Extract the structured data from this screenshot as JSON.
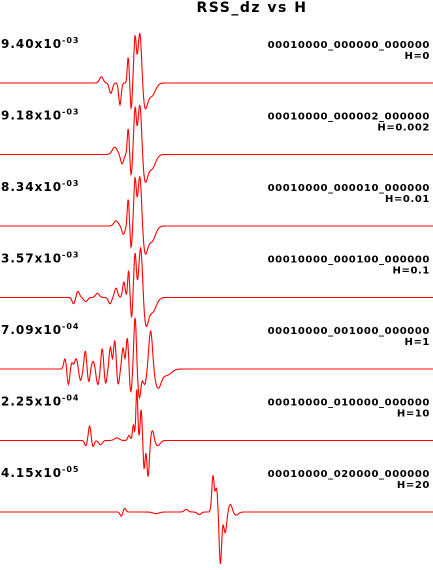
{
  "chart_data": {
    "type": "line",
    "title": "RSS_dz vs H",
    "xlabel": "",
    "ylabel": "",
    "grid": false,
    "legend": "none",
    "line_color": "#ff0000",
    "traces": [
      {
        "scale": {
          "mantissa": "9.40x10",
          "exponent": "-03"
        },
        "label": "00010000_000000_000000",
        "param": "H=0",
        "pulses": [
          {
            "t": 0.234,
            "a": 0.12,
            "w": 0.006
          },
          {
            "t": 0.256,
            "a": -0.2,
            "w": 0.005
          },
          {
            "t": 0.277,
            "a": -0.42,
            "w": 0.004
          },
          {
            "t": 0.296,
            "a": 0.5,
            "w": 0.003
          },
          {
            "t": 0.303,
            "a": -0.5,
            "w": 0.003
          },
          {
            "t": 0.312,
            "a": 0.88,
            "w": 0.004
          },
          {
            "t": 0.323,
            "a": 1.0,
            "w": 0.006
          },
          {
            "t": 0.335,
            "a": -0.45,
            "w": 0.008
          },
          {
            "t": 0.35,
            "a": -0.25,
            "w": 0.012
          }
        ]
      },
      {
        "scale": {
          "mantissa": "9.18x10",
          "exponent": "-03"
        },
        "label": "00010000_000002_000000",
        "param": "H=0.002",
        "pulses": [
          {
            "t": 0.265,
            "a": 0.14,
            "w": 0.008
          },
          {
            "t": 0.282,
            "a": -0.18,
            "w": 0.005
          },
          {
            "t": 0.296,
            "a": 0.5,
            "w": 0.003
          },
          {
            "t": 0.303,
            "a": -0.4,
            "w": 0.003
          },
          {
            "t": 0.312,
            "a": 0.88,
            "w": 0.004
          },
          {
            "t": 0.323,
            "a": 1.0,
            "w": 0.006
          },
          {
            "t": 0.335,
            "a": -0.48,
            "w": 0.008
          },
          {
            "t": 0.35,
            "a": -0.28,
            "w": 0.012
          }
        ]
      },
      {
        "scale": {
          "mantissa": "8.34x10",
          "exponent": "-03"
        },
        "label": "00010000_000010_000000",
        "param": "H=0.01",
        "pulses": [
          {
            "t": 0.268,
            "a": 0.1,
            "w": 0.007
          },
          {
            "t": 0.285,
            "a": -0.16,
            "w": 0.005
          },
          {
            "t": 0.296,
            "a": 0.52,
            "w": 0.003
          },
          {
            "t": 0.303,
            "a": -0.42,
            "w": 0.003
          },
          {
            "t": 0.312,
            "a": 0.9,
            "w": 0.004
          },
          {
            "t": 0.323,
            "a": 1.0,
            "w": 0.006
          },
          {
            "t": 0.335,
            "a": -0.48,
            "w": 0.008
          },
          {
            "t": 0.35,
            "a": -0.3,
            "w": 0.012
          }
        ]
      },
      {
        "scale": {
          "mantissa": "3.57x10",
          "exponent": "-03"
        },
        "label": "00010000_000100_000000",
        "param": "H=0.1",
        "pulses": [
          {
            "t": 0.17,
            "a": -0.12,
            "w": 0.005
          },
          {
            "t": 0.18,
            "a": 0.12,
            "w": 0.005
          },
          {
            "t": 0.198,
            "a": -0.08,
            "w": 0.006
          },
          {
            "t": 0.225,
            "a": 0.08,
            "w": 0.006
          },
          {
            "t": 0.254,
            "a": -0.12,
            "w": 0.005
          },
          {
            "t": 0.268,
            "a": 0.18,
            "w": 0.005
          },
          {
            "t": 0.286,
            "a": 0.3,
            "w": 0.004
          },
          {
            "t": 0.297,
            "a": 0.52,
            "w": 0.003
          },
          {
            "t": 0.304,
            "a": -0.4,
            "w": 0.003
          },
          {
            "t": 0.312,
            "a": 0.85,
            "w": 0.004
          },
          {
            "t": 0.325,
            "a": 1.0,
            "w": 0.006
          },
          {
            "t": 0.337,
            "a": -0.5,
            "w": 0.008
          },
          {
            "t": 0.352,
            "a": -0.28,
            "w": 0.012
          }
        ]
      },
      {
        "scale": {
          "mantissa": "7.09x10",
          "exponent": "-04"
        },
        "label": "00010000_001000_000000",
        "param": "H=1",
        "pulses": [
          {
            "t": 0.15,
            "a": 0.2,
            "w": 0.004
          },
          {
            "t": 0.158,
            "a": -0.3,
            "w": 0.004
          },
          {
            "t": 0.166,
            "a": 0.12,
            "w": 0.004
          },
          {
            "t": 0.176,
            "a": 0.2,
            "w": 0.005
          },
          {
            "t": 0.186,
            "a": -0.22,
            "w": 0.005
          },
          {
            "t": 0.197,
            "a": 0.35,
            "w": 0.004
          },
          {
            "t": 0.205,
            "a": -0.25,
            "w": 0.004
          },
          {
            "t": 0.215,
            "a": 0.15,
            "w": 0.005
          },
          {
            "t": 0.226,
            "a": -0.3,
            "w": 0.005
          },
          {
            "t": 0.236,
            "a": 0.4,
            "w": 0.004
          },
          {
            "t": 0.244,
            "a": -0.28,
            "w": 0.004
          },
          {
            "t": 0.255,
            "a": 0.42,
            "w": 0.004
          },
          {
            "t": 0.265,
            "a": 0.55,
            "w": 0.004
          },
          {
            "t": 0.273,
            "a": -0.3,
            "w": 0.004
          },
          {
            "t": 0.284,
            "a": 0.4,
            "w": 0.004
          },
          {
            "t": 0.294,
            "a": 0.6,
            "w": 0.004
          },
          {
            "t": 0.302,
            "a": -0.45,
            "w": 0.004
          },
          {
            "t": 0.312,
            "a": 1.0,
            "w": 0.004
          },
          {
            "t": 0.322,
            "a": -0.55,
            "w": 0.005
          },
          {
            "t": 0.334,
            "a": -0.3,
            "w": 0.006
          },
          {
            "t": 0.348,
            "a": 0.75,
            "w": 0.006
          },
          {
            "t": 0.365,
            "a": -0.35,
            "w": 0.01
          },
          {
            "t": 0.385,
            "a": -0.12,
            "w": 0.015
          }
        ]
      },
      {
        "scale": {
          "mantissa": "2.25x10",
          "exponent": "-04"
        },
        "label": "00010000_010000_000000",
        "param": "H=10",
        "pulses": [
          {
            "t": 0.198,
            "a": -0.1,
            "w": 0.004
          },
          {
            "t": 0.207,
            "a": 0.28,
            "w": 0.004
          },
          {
            "t": 0.215,
            "a": -0.12,
            "w": 0.004
          },
          {
            "t": 0.232,
            "a": -0.08,
            "w": 0.006
          },
          {
            "t": 0.27,
            "a": 0.05,
            "w": 0.008
          },
          {
            "t": 0.298,
            "a": 0.1,
            "w": 0.004
          },
          {
            "t": 0.308,
            "a": 0.3,
            "w": 0.003
          },
          {
            "t": 0.316,
            "a": 1.0,
            "w": 0.003
          },
          {
            "t": 0.326,
            "a": 0.6,
            "w": 0.003
          },
          {
            "t": 0.333,
            "a": -0.55,
            "w": 0.003
          },
          {
            "t": 0.342,
            "a": -0.7,
            "w": 0.004
          },
          {
            "t": 0.352,
            "a": 0.2,
            "w": 0.005
          },
          {
            "t": 0.364,
            "a": -0.1,
            "w": 0.008
          }
        ]
      },
      {
        "scale": {
          "mantissa": "4.15x10",
          "exponent": "-05"
        },
        "label": "00010000_020000_000000",
        "param": "H=20",
        "pulses": [
          {
            "t": 0.28,
            "a": -0.08,
            "w": 0.004
          },
          {
            "t": 0.288,
            "a": 0.07,
            "w": 0.004
          },
          {
            "t": 0.36,
            "a": -0.03,
            "w": 0.01
          },
          {
            "t": 0.43,
            "a": 0.05,
            "w": 0.006
          },
          {
            "t": 0.46,
            "a": -0.05,
            "w": 0.006
          },
          {
            "t": 0.492,
            "a": 0.7,
            "w": 0.004
          },
          {
            "t": 0.5,
            "a": 0.45,
            "w": 0.004
          },
          {
            "t": 0.509,
            "a": -1.0,
            "w": 0.004
          },
          {
            "t": 0.52,
            "a": -0.4,
            "w": 0.005
          },
          {
            "t": 0.532,
            "a": 0.15,
            "w": 0.006
          },
          {
            "t": 0.545,
            "a": -0.06,
            "w": 0.008
          }
        ]
      }
    ]
  }
}
